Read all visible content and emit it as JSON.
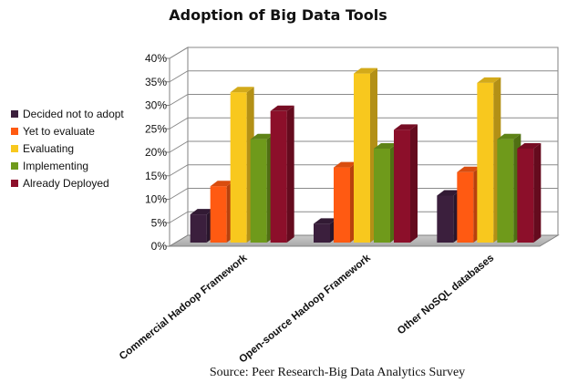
{
  "chart_data": {
    "type": "bar",
    "title": "Adoption of Big Data Tools",
    "categories": [
      "Commercial Hadoop Framework",
      "Open-source Hadoop Framework",
      "Other NoSQL databases"
    ],
    "series": [
      {
        "name": "Decided not to adopt",
        "color": "#3b1f3d",
        "values": [
          6,
          4,
          10
        ]
      },
      {
        "name": "Yet to evaluate",
        "color": "#ff5a12",
        "values": [
          12,
          16,
          15
        ]
      },
      {
        "name": "Evaluating",
        "color": "#f8c81e",
        "values": [
          32,
          36,
          34
        ]
      },
      {
        "name": "Implementing",
        "color": "#6f9a1b",
        "values": [
          22,
          20,
          22
        ]
      },
      {
        "name": "Already Deployed",
        "color": "#8c0f2a",
        "values": [
          28,
          24,
          20
        ]
      }
    ],
    "ylim": [
      0,
      40
    ],
    "yticks": [
      "0%",
      "5%",
      "10%",
      "15%",
      "20%",
      "25%",
      "30%",
      "35%",
      "40%"
    ],
    "grid": true,
    "legend": "left",
    "source": "Source: Peer Research-Big Data Analytics Survey"
  }
}
